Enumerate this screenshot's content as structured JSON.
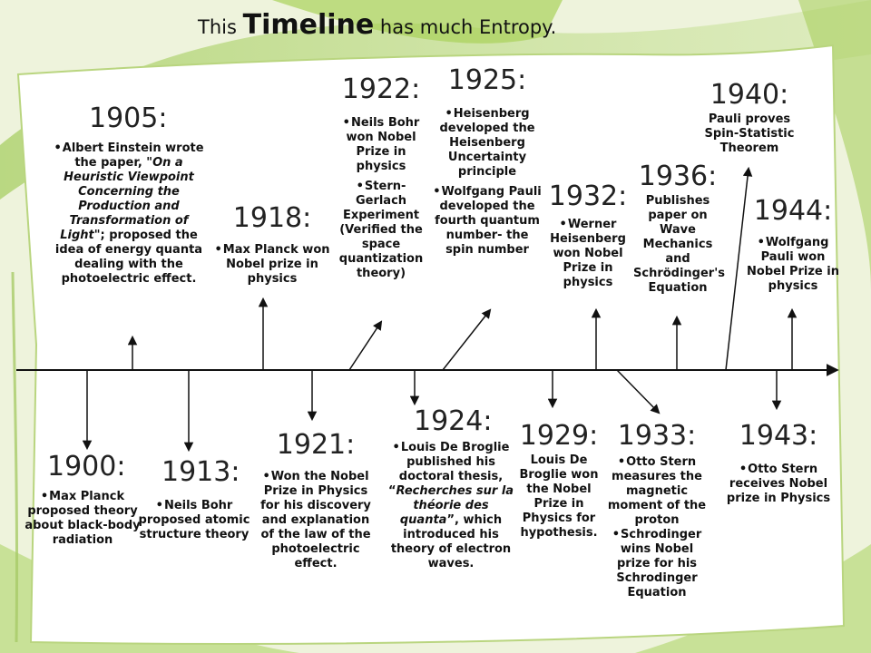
{
  "title": {
    "prefix": "This",
    "emphasis": "Timeline",
    "suffix": "has much Entropy."
  },
  "events": {
    "e1905": {
      "year": "1905:",
      "b1_pre": "Albert Einstein wrote the paper, \"",
      "b1_it": "On a Heuristic Viewpoint Concerning the Production and Transformation of Light",
      "b1_post": "\"; proposed the idea of energy quanta dealing with the photoelectric effect."
    },
    "e1918": {
      "year": "1918:",
      "b1": "Max Planck won Nobel prize in physics"
    },
    "e1922": {
      "year": "1922:",
      "b1": "Neils Bohr won Nobel Prize in physics",
      "b2": "Stern-Gerlach Experiment (Verified the space quantization theory)"
    },
    "e1925": {
      "year": "1925:",
      "b1": "Heisenberg developed the Heisenberg Uncertainty principle",
      "b2": "Wolfgang Pauli developed the fourth quantum number- the spin number"
    },
    "e1932": {
      "year": "1932:",
      "b1": "Werner Heisenberg won Nobel Prize in physics"
    },
    "e1936": {
      "year": "1936:",
      "b1": "Publishes paper on Wave Mechanics and Schrödinger's Equation"
    },
    "e1940": {
      "year": "1940:",
      "b1": "Pauli proves Spin-Statistic Theorem"
    },
    "e1944": {
      "year": "1944:",
      "b1": "Wolfgang Pauli won Nobel Prize in physics"
    },
    "e1900": {
      "year": "1900:",
      "b1": "Max Planck proposed theory about black-body radiation"
    },
    "e1913": {
      "year": "1913:",
      "b1": "Neils Bohr proposed atomic structure theory"
    },
    "e1921": {
      "year": "1921:",
      "b1": "Won the Nobel Prize in Physics for his discovery and explanation of the law of the photoelectric effect."
    },
    "e1924": {
      "year": "1924:",
      "b1_pre": "Louis De Broglie published his doctoral thesis, “",
      "b1_it": "Recherches sur la théorie des quanta",
      "b1_post": "”, which introduced his theory of electron waves."
    },
    "e1929": {
      "year": "1929:",
      "b1": "Louis De Broglie won the Nobel Prize in Physics for hypothesis."
    },
    "e1933": {
      "year": "1933:",
      "b1": "Otto Stern measures the magnetic moment of the proton",
      "b2": "Schrodinger wins Nobel prize for his Schrodinger Equation"
    },
    "e1943": {
      "year": "1943:",
      "b1": "Otto Stern receives Nobel prize in Physics"
    }
  }
}
